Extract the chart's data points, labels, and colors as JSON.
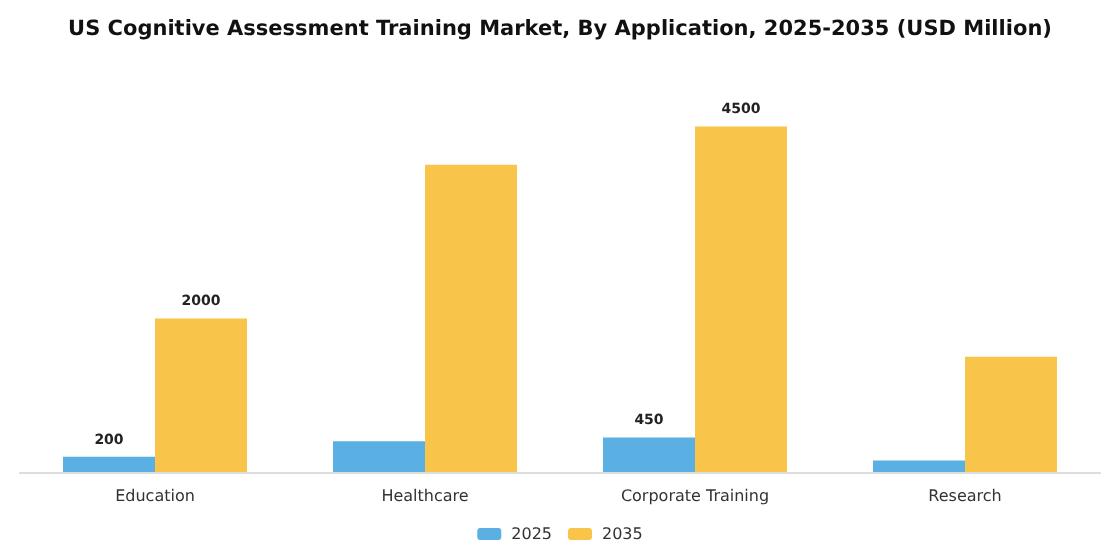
{
  "chart_data": {
    "type": "bar",
    "title": "US Cognitive Assessment Training Market, By Application, 2025-2035 (USD Million)",
    "categories": [
      "Education",
      "Healthcare",
      "Corporate Training",
      "Research"
    ],
    "series": [
      {
        "name": "2025",
        "color": "#5aafe3",
        "values": [
          200,
          400,
          450,
          150
        ],
        "value_labels": [
          "200",
          null,
          "450",
          null
        ]
      },
      {
        "name": "2035",
        "color": "#f8c54a",
        "values": [
          2000,
          4000,
          4500,
          1500
        ],
        "value_labels": [
          "2000",
          null,
          "4500",
          null
        ]
      }
    ],
    "legend": "bottom",
    "grid": false,
    "tick_labels": "x"
  }
}
